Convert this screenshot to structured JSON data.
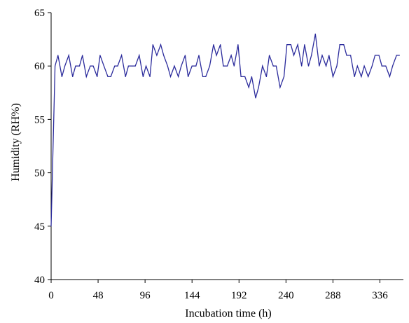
{
  "chart_data": {
    "type": "line",
    "title": "",
    "xlabel": "Incubation time (h)",
    "ylabel": "Humidity (RH%)",
    "xlim": [
      0,
      360
    ],
    "ylim": [
      40,
      65
    ],
    "x_ticks": [
      0,
      48,
      96,
      144,
      192,
      240,
      288,
      336
    ],
    "y_ticks": [
      40,
      45,
      50,
      55,
      60,
      65
    ],
    "grid": false,
    "legend": "none",
    "series": [
      {
        "color": "#2b2b9c",
        "x": [
          0,
          4,
          7,
          11,
          14,
          18,
          22,
          25,
          29,
          32,
          36,
          40,
          43,
          47,
          50,
          54,
          58,
          61,
          65,
          68,
          72,
          76,
          79,
          83,
          86,
          90,
          94,
          97,
          101,
          104,
          108,
          112,
          115,
          119,
          122,
          126,
          130,
          133,
          137,
          140,
          144,
          148,
          151,
          155,
          158,
          162,
          166,
          169,
          173,
          176,
          180,
          184,
          187,
          191,
          194,
          198,
          202,
          205,
          209,
          212,
          216,
          220,
          223,
          227,
          230,
          234,
          238,
          241,
          245,
          248,
          252,
          256,
          259,
          263,
          266,
          270,
          274,
          277,
          281,
          284,
          288,
          292,
          295,
          299,
          302,
          306,
          310,
          313,
          317,
          320,
          324,
          328,
          331,
          335,
          338,
          342,
          346,
          349,
          353,
          356
        ],
        "y": [
          45,
          60,
          61,
          59,
          60,
          61,
          59,
          60,
          60,
          61,
          59,
          60,
          60,
          59,
          61,
          60,
          59,
          59,
          60,
          60,
          61,
          59,
          60,
          60,
          60,
          61,
          59,
          60,
          59,
          62,
          61,
          62,
          61,
          60,
          59,
          60,
          59,
          60,
          61,
          59,
          60,
          60,
          61,
          59,
          59,
          60,
          62,
          61,
          62,
          60,
          60,
          61,
          60,
          62,
          59,
          59,
          58,
          59,
          57,
          58,
          60,
          59,
          61,
          60,
          60,
          58,
          59,
          62,
          62,
          61,
          62,
          60,
          62,
          60,
          61,
          63,
          60,
          61,
          60,
          61,
          59,
          60,
          62,
          62,
          61,
          61,
          59,
          60,
          59,
          60,
          59,
          60,
          61,
          61,
          60,
          60,
          59,
          60,
          61,
          61
        ]
      }
    ]
  }
}
